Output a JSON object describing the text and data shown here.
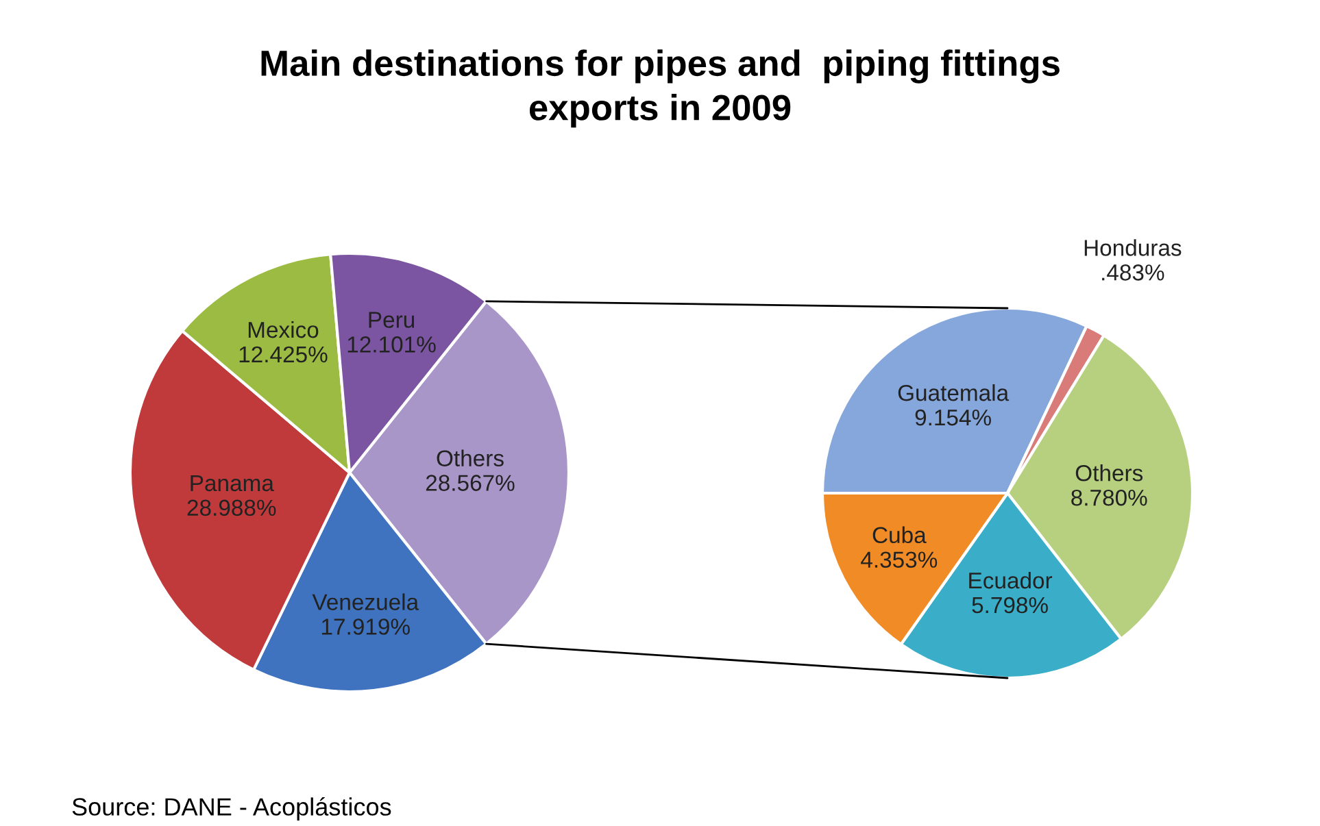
{
  "chart_data": [
    {
      "type": "pie",
      "title": "Main destinations for pipes and  piping fittings\nexports in 2009",
      "categories": [
        "Others",
        "Venezuela",
        "Panama",
        "Mexico",
        "Peru"
      ],
      "values": [
        28.567,
        17.919,
        28.988,
        12.425,
        12.101
      ],
      "value_labels": [
        "28.567%",
        "17.919%",
        "28.988%",
        "12.425%",
        "12.101%"
      ],
      "colors": [
        "#a996c9",
        "#3f72bf",
        "#c03a3b",
        "#9bbb42",
        "#7b55a1"
      ],
      "annotations": [
        "Source: DANE - Acoplásticos"
      ]
    },
    {
      "type": "pie",
      "categories": [
        "Guatemala",
        "Honduras",
        "Others",
        "Ecuador",
        "Cuba"
      ],
      "values": [
        9.154,
        0.483,
        8.78,
        5.798,
        4.353
      ],
      "value_labels": [
        "9.154%",
        ".483%",
        "8.780%",
        "5.798%",
        "4.353%"
      ],
      "colors": [
        "#86a7dc",
        "#d97b79",
        "#b6d07f",
        "#3aaec8",
        "#f18b25"
      ]
    }
  ]
}
